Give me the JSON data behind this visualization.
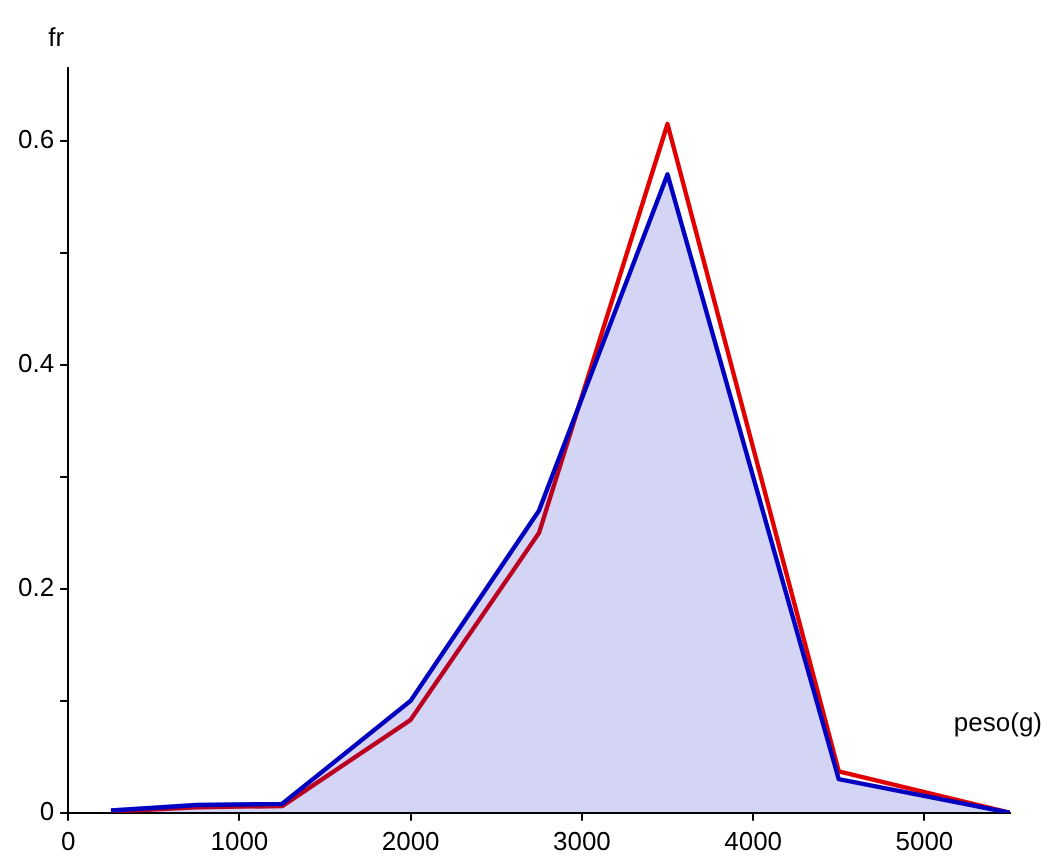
{
  "chart_data": {
    "type": "line",
    "xlabel": "peso(g)",
    "ylabel": "fr",
    "x": [
      250,
      750,
      1250,
      2000,
      2750,
      3500,
      4500,
      5500
    ],
    "series": [
      {
        "type": "area",
        "color": "#0000c0",
        "values": [
          0.002,
          0.007,
          0.008,
          0.1,
          0.27,
          0.57,
          0.03,
          0
        ]
      },
      {
        "color": "#e00000",
        "values": [
          0.001,
          0.005,
          0.006,
          0.083,
          0.25,
          0.615,
          0.037,
          0
        ]
      }
    ],
    "xlim": [
      0,
      5500
    ],
    "xticks": [
      0,
      1000,
      2000,
      3000,
      4000,
      5000
    ],
    "ylim": [
      0,
      0.665
    ],
    "yticks": [
      0,
      {
        "value": 0.1,
        "label": null
      },
      0.2,
      {
        "value": 0.3,
        "label": null
      },
      0.4,
      {
        "value": 0.5,
        "label": null
      },
      0.6
    ],
    "grid": false,
    "legend": false,
    "marker": "none",
    "line_style": "solid"
  }
}
